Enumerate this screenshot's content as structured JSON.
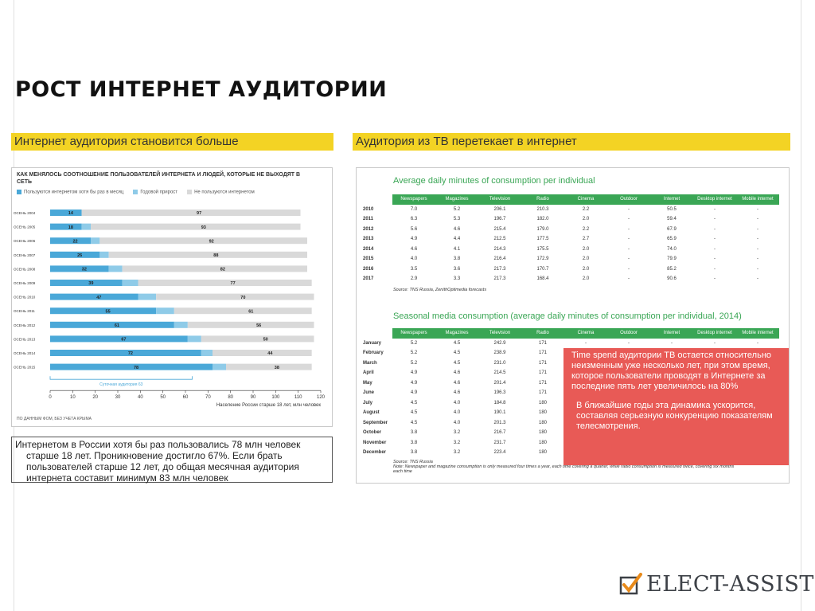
{
  "title": "РОСТ ИНТЕРНЕТ АУДИТОРИИ",
  "left": {
    "header": "Интернет аудитория становится больше",
    "chart_heading": "КАК МЕНЯЛОСЬ СООТНОШЕНИЕ ПОЛЬЗОВАТЕЛЕЙ ИНТЕРНЕТА И ЛЮДЕЙ, КОТОРЫЕ НЕ ВЫХОДЯТ В СЕТЬ",
    "legend": [
      "Пользуются интернетом хотя бы раз в месяц",
      "Годовой прирост",
      "Не пользуются интернетом"
    ],
    "xaxis_caption": "Население России старше 18 лет, млн человек",
    "bracket_label": "Суточная аудитория 63",
    "source": "ПО ДАННЫМ ФОМ, БЕЗ УЧЕТА КРЫМА",
    "caption_line1": "Интернетом в России хотя бы раз пользовались 78 млн человек",
    "caption_rest": "старше 18 лет. Проникновение достигло 67%. Если брать пользователей старше 12 лет, до общая месячная аудитория интернета составит минимум 83 млн человек"
  },
  "right": {
    "header": "Аудитория из ТВ перетекает в интернет",
    "section1_title": "Average daily minutes of consumption per individual",
    "section1_source": "Source: TNS Russia, ZenithOptimedia forecasts",
    "section2_title": "Seasonal media consumption (average daily minutes of consumption per individual, 2014)",
    "section2_source": "Source: TNS Russia",
    "section2_note": "Note: Newspaper and magazine consumption is only measured four times a year, each time covering a quarter, while radio consumption is measured twice, covering six months each time",
    "columns": [
      "Newspapers",
      "Magazines",
      "Television",
      "Radio",
      "Cinema",
      "Outdoor",
      "Internet",
      "Desktop internet",
      "Mobile internet"
    ],
    "annual": [
      [
        "2010",
        "7.0",
        "5.2",
        "206.1",
        "210.3",
        "2.2",
        "-",
        "50.5",
        "-",
        "-"
      ],
      [
        "2011",
        "6.3",
        "5.3",
        "196.7",
        "182.0",
        "2.0",
        "-",
        "59.4",
        "-",
        "-"
      ],
      [
        "2012",
        "5.6",
        "4.6",
        "215.4",
        "179.0",
        "2.2",
        "-",
        "67.9",
        "-",
        "-"
      ],
      [
        "2013",
        "4.9",
        "4.4",
        "212.5",
        "177.5",
        "2.7",
        "-",
        "65.9",
        "-",
        "-"
      ],
      [
        "2014",
        "4.6",
        "4.1",
        "214.3",
        "175.5",
        "2.0",
        "-",
        "74.0",
        "-",
        "-"
      ],
      [
        "2015",
        "4.0",
        "3.8",
        "216.4",
        "172.9",
        "2.0",
        "-",
        "79.9",
        "-",
        "-"
      ],
      [
        "2016",
        "3.5",
        "3.6",
        "217.3",
        "170.7",
        "2.0",
        "-",
        "85.2",
        "-",
        "-"
      ],
      [
        "2017",
        "2.9",
        "3.3",
        "217.3",
        "168.4",
        "2.0",
        "-",
        "90.6",
        "-",
        "-"
      ]
    ],
    "seasonal": [
      [
        "January",
        "5.2",
        "4.5",
        "242.9",
        "171",
        "-",
        "-",
        "-",
        "-",
        "-"
      ],
      [
        "February",
        "5.2",
        "4.5",
        "238.9",
        "171",
        "",
        "",
        "",
        "",
        ""
      ],
      [
        "March",
        "5.2",
        "4.5",
        "231.0",
        "171",
        "",
        "",
        "",
        "",
        ""
      ],
      [
        "April",
        "4.9",
        "4.6",
        "214.5",
        "171",
        "",
        "",
        "",
        "",
        ""
      ],
      [
        "May",
        "4.9",
        "4.6",
        "201.4",
        "171",
        "",
        "",
        "",
        "",
        ""
      ],
      [
        "June",
        "4.9",
        "4.6",
        "196.3",
        "171",
        "",
        "",
        "",
        "",
        ""
      ],
      [
        "July",
        "4.5",
        "4.0",
        "184.8",
        "180",
        "",
        "",
        "",
        "",
        ""
      ],
      [
        "August",
        "4.5",
        "4.0",
        "190.1",
        "180",
        "",
        "",
        "",
        "",
        ""
      ],
      [
        "September",
        "4.5",
        "4.0",
        "201.3",
        "180",
        "",
        "",
        "",
        "",
        ""
      ],
      [
        "October",
        "3.8",
        "3.2",
        "216.7",
        "180",
        "",
        "",
        "",
        "",
        ""
      ],
      [
        "November",
        "3.8",
        "3.2",
        "231.7",
        "180",
        "",
        "",
        "",
        "",
        ""
      ],
      [
        "December",
        "3.8",
        "3.2",
        "223.4",
        "180",
        "",
        "",
        "",
        "",
        ""
      ]
    ],
    "callout_p1": "Time spend аудитории ТВ остается относительно неизменным уже несколько лет, при этом время, которое пользователи проводят в Интернете за последние пять лет увеличилось на 80%",
    "callout_p2": "В ближайшие годы эта динамика ускорится, составляя серьезную конкуренцию показателям телесмотрения."
  },
  "logo": "ELECT-ASSIST",
  "colors": {
    "accent_yellow": "#f3d324",
    "bar_blue": "#4aa8d8",
    "bar_growth": "#8fcbe8",
    "bar_gray": "#d9d9d9",
    "table_green": "#3aa655",
    "callout_red": "#e85a56"
  },
  "chart_data": {
    "type": "bar",
    "orientation": "horizontal",
    "categories": [
      "ОСЕНЬ 2004",
      "ОСЕНЬ 2005",
      "ОСЕНЬ 2006",
      "ОСЕНЬ 2007",
      "ОСЕНЬ 2008",
      "ОСЕНЬ 2009",
      "ОСЕНЬ 2010",
      "ОСЕНЬ 2011",
      "ОСЕНЬ 2012",
      "ОСЕНЬ 2013",
      "ОСЕНЬ 2014",
      "ОСЕНЬ 2015"
    ],
    "series": [
      {
        "name": "Пользуются интернетом хотя бы раз в месяц",
        "values": [
          14,
          18,
          22,
          26,
          32,
          39,
          47,
          55,
          61,
          67,
          72,
          78
        ]
      },
      {
        "name": "Годовой прирост",
        "values": [
          0,
          4,
          4,
          4,
          6,
          7,
          8,
          8,
          6,
          6,
          5,
          6
        ]
      },
      {
        "name": "Не пользуются интернетом",
        "values": [
          97,
          93,
          92,
          88,
          82,
          77,
          70,
          61,
          56,
          50,
          44,
          38
        ]
      }
    ],
    "xticks": [
      0,
      10,
      20,
      30,
      40,
      50,
      60,
      70,
      80,
      90,
      100,
      110,
      120
    ],
    "xlim": [
      0,
      120
    ],
    "xlabel": "Население России старше 18 лет, млн человек",
    "legend": "top-left"
  }
}
